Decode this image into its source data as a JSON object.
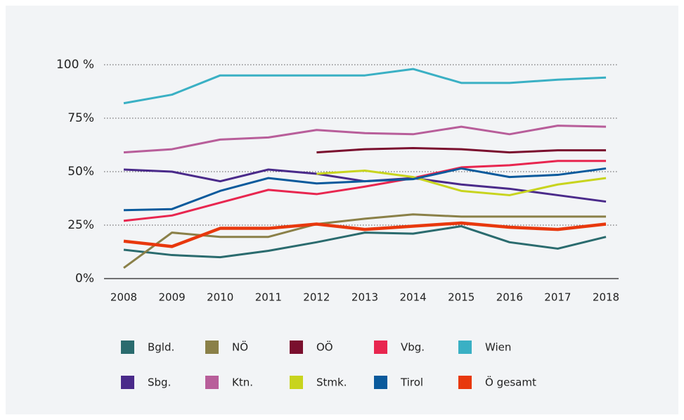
{
  "chart_data": {
    "type": "line",
    "categories": [
      "2008",
      "2009",
      "2010",
      "2011",
      "2012",
      "2013",
      "2014",
      "2015",
      "2016",
      "2017",
      "2018"
    ],
    "ylim": [
      0,
      100
    ],
    "yticks": [
      {
        "value": 0,
        "label": "0%"
      },
      {
        "value": 25,
        "label": "25%"
      },
      {
        "value": 50,
        "label": "50%"
      },
      {
        "value": 75,
        "label": "75%"
      },
      {
        "value": 100,
        "label": "100 %"
      }
    ],
    "grid": true,
    "series": [
      {
        "name": "Bgld.",
        "color": "#2a6b6e",
        "values": [
          13.5,
          11,
          10,
          13,
          17,
          21.5,
          21,
          24.5,
          17,
          14,
          19.5
        ]
      },
      {
        "name": "NÖ",
        "color": "#8a8048",
        "values": [
          5,
          21.5,
          19.5,
          19.5,
          25.5,
          28,
          30,
          29,
          29,
          29,
          29
        ]
      },
      {
        "name": "OÖ",
        "color": "#7a0f2e",
        "values": [
          null,
          null,
          null,
          null,
          59,
          60.5,
          61,
          60.5,
          59,
          60,
          60
        ]
      },
      {
        "name": "Vbg.",
        "color": "#e8264f",
        "values": [
          27,
          29.5,
          35.5,
          41.5,
          39.5,
          43,
          47,
          52,
          53,
          55,
          55
        ]
      },
      {
        "name": "Wien",
        "color": "#3ab0c4",
        "values": [
          82,
          86,
          95,
          95,
          95,
          95,
          98,
          91.5,
          91.5,
          93,
          94
        ]
      },
      {
        "name": "Sbg.",
        "color": "#4a2a8a",
        "values": [
          51,
          50,
          45.5,
          51,
          49,
          45.5,
          47,
          44,
          42,
          39,
          36
        ]
      },
      {
        "name": "Ktn.",
        "color": "#b85e9a",
        "values": [
          59,
          60.5,
          65,
          66,
          69.5,
          68,
          67.5,
          71,
          67.5,
          71.5,
          71
        ]
      },
      {
        "name": "Stmk.",
        "color": "#c8d41e",
        "values": [
          null,
          null,
          null,
          null,
          49,
          50.5,
          47.5,
          41,
          39,
          44,
          47
        ]
      },
      {
        "name": "Tirol",
        "color": "#0a5a9c",
        "values": [
          32,
          32.5,
          41,
          47,
          44.5,
          45.5,
          46.5,
          51.5,
          47.5,
          48.5,
          51.5
        ]
      },
      {
        "name": "Ö gesamt",
        "color": "#e8380d",
        "values": [
          17.5,
          15,
          23.5,
          23.5,
          25.5,
          23,
          24.5,
          26,
          24,
          23,
          25.5
        ]
      }
    ]
  }
}
